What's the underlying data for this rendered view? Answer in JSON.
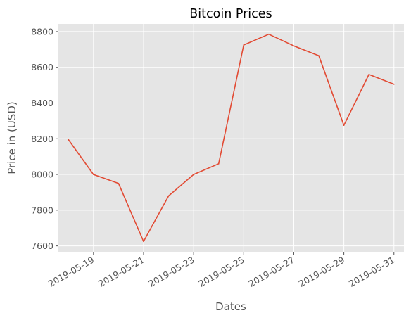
{
  "chart_data": {
    "type": "line",
    "title": "Bitcoin Prices",
    "xlabel": "Dates",
    "ylabel": "Price in (USD)",
    "x": [
      "2019-05-18",
      "2019-05-19",
      "2019-05-20",
      "2019-05-21",
      "2019-05-22",
      "2019-05-23",
      "2019-05-24",
      "2019-05-25",
      "2019-05-26",
      "2019-05-27",
      "2019-05-28",
      "2019-05-29",
      "2019-05-30",
      "2019-05-31"
    ],
    "series": [
      {
        "values": [
          8195,
          8000,
          7950,
          7625,
          7880,
          8000,
          8060,
          8725,
          8785,
          8720,
          8665,
          8275,
          8560,
          8505
        ],
        "color": "#e24a33"
      }
    ],
    "xticks": [
      "2019-05-19",
      "2019-05-21",
      "2019-05-23",
      "2019-05-25",
      "2019-05-27",
      "2019-05-29",
      "2019-05-31"
    ],
    "yticks": [
      7600,
      7800,
      8000,
      8200,
      8400,
      8600,
      8800
    ],
    "ylim": [
      7567,
      8843
    ],
    "xlim": [
      "2019-05-17T14:24",
      "2019-05-31T09:36"
    ],
    "grid": true,
    "style": "ggplot",
    "background_color": "#e5e5e5",
    "grid_color": "#ffffff"
  }
}
